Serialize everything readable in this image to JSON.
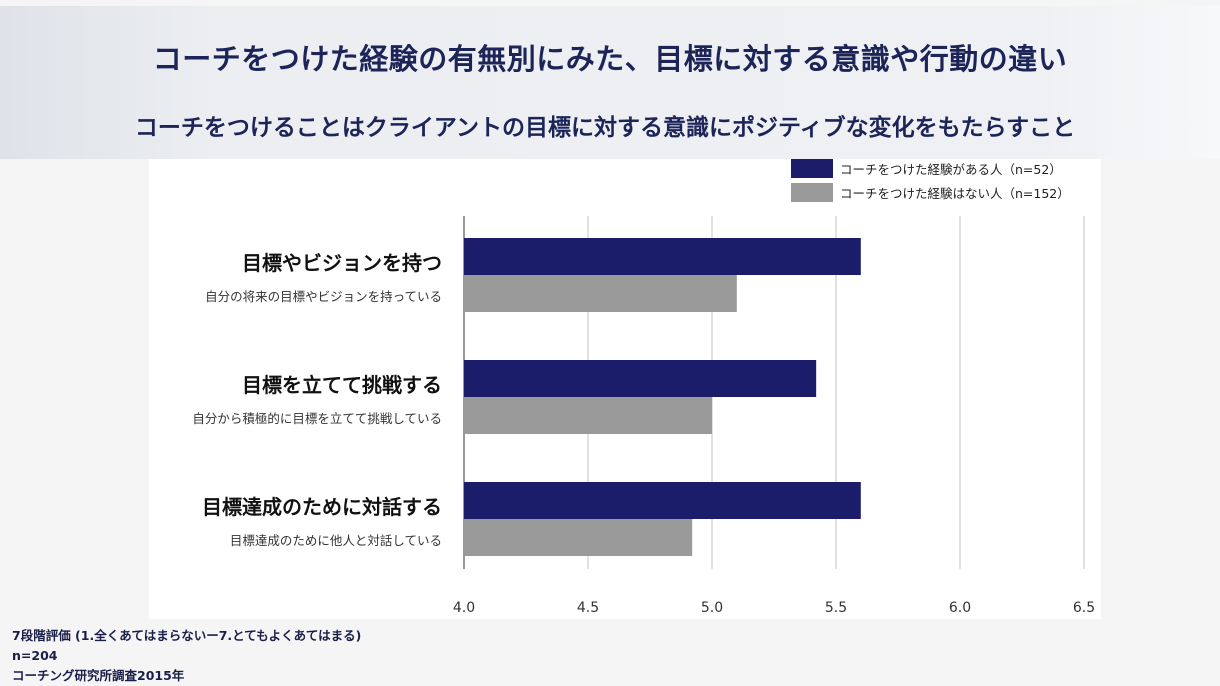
{
  "header": {
    "title": "コーチをつけた経験の有無別にみた、目標に対する意識や行動の違い",
    "subtitle": "コーチをつけることはクライアントの目標に対する意識にポジティブな変化をもたらすこと"
  },
  "chart_data": {
    "type": "bar",
    "orientation": "horizontal",
    "categories": [
      {
        "label": "目標やビジョンを持つ",
        "sublabel": "自分の将来の目標やビジョンを持っている"
      },
      {
        "label": "目標を立てて挑戦する",
        "sublabel": "自分から積極的に目標を立てて挑戦している"
      },
      {
        "label": "目標達成のために対話する",
        "sublabel": "目標達成のために他人と対話している"
      }
    ],
    "series": [
      {
        "name": "コーチをつけた経験がある人（n=52）",
        "color": "#1b1d6b",
        "values": [
          5.6,
          5.42,
          5.6
        ]
      },
      {
        "name": "コーチをつけた経験はない人（n=152）",
        "color": "#9a9a9a",
        "values": [
          5.1,
          5.0,
          4.92
        ]
      }
    ],
    "xlim": [
      4.0,
      6.5
    ],
    "ticks": [
      "4.0",
      "4.5",
      "5.0",
      "5.5",
      "6.0",
      "6.5"
    ],
    "grid": true,
    "legend_position": "top-right"
  },
  "notes": [
    "7段階評価 (1.全くあてはまらないー7.とてもよくあてはまる)",
    "n=204",
    "コーチング研究所調査2015年"
  ]
}
